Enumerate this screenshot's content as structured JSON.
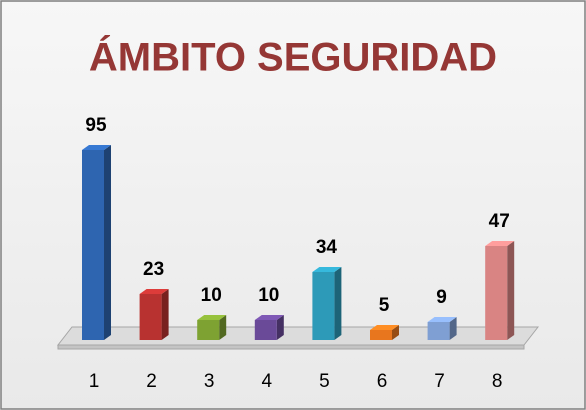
{
  "chart_data": {
    "type": "bar3d",
    "title": "ÁMBITO SEGURIDAD",
    "categories": [
      "1",
      "2",
      "3",
      "4",
      "5",
      "6",
      "7",
      "8"
    ],
    "values": [
      95,
      23,
      10,
      10,
      34,
      5,
      9,
      47
    ],
    "colors": [
      "#2e65b0",
      "#b83230",
      "#7ea232",
      "#6a4a98",
      "#2d9ab8",
      "#e8761e",
      "#7f9fd3",
      "#d98483"
    ]
  }
}
